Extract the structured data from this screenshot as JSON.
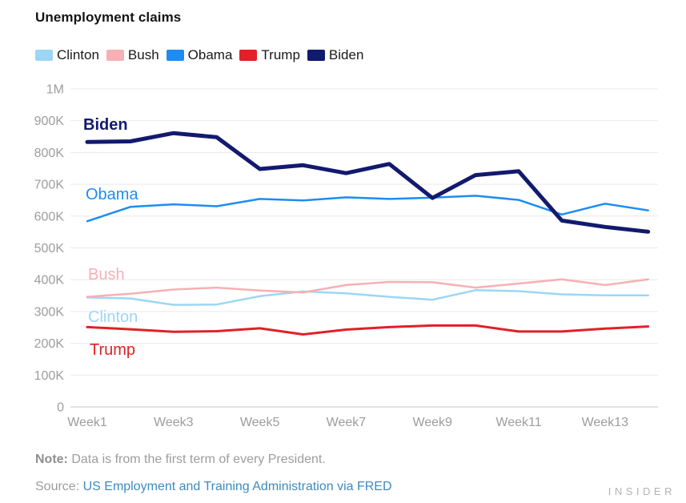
{
  "header": {
    "title": "Unemployment claims"
  },
  "chart_data": {
    "type": "line",
    "title": "Unemployment claims",
    "categories": [
      "Week1",
      "Week2",
      "Week3",
      "Week4",
      "Week5",
      "Week6",
      "Week7",
      "Week8",
      "Week9",
      "Week10",
      "Week11",
      "Week12",
      "Week13",
      "Week14"
    ],
    "x_tick_labels": [
      "Week1",
      "Week3",
      "Week5",
      "Week7",
      "Week9",
      "Week11",
      "Week13"
    ],
    "ylim": [
      0,
      1000000
    ],
    "y_ticks": [
      {
        "value": 0,
        "label": "0"
      },
      {
        "value": 100000,
        "label": "100K"
      },
      {
        "value": 200000,
        "label": "200K"
      },
      {
        "value": 300000,
        "label": "300K"
      },
      {
        "value": 400000,
        "label": "400K"
      },
      {
        "value": 500000,
        "label": "500K"
      },
      {
        "value": 600000,
        "label": "600K"
      },
      {
        "value": 700000,
        "label": "700K"
      },
      {
        "value": 800000,
        "label": "800K"
      },
      {
        "value": 900000,
        "label": "900K"
      },
      {
        "value": 1000000,
        "label": "1M"
      }
    ],
    "grid": true,
    "legend_position": "top",
    "series": [
      {
        "name": "Clinton",
        "color": "#9DD6F4",
        "values": [
          344000,
          341000,
          321000,
          322000,
          348000,
          363000,
          357000,
          346000,
          337000,
          367000,
          364000,
          354000,
          351000,
          351000
        ]
      },
      {
        "name": "Bush",
        "color": "#F7B0B3",
        "values": [
          346000,
          356000,
          369000,
          375000,
          366000,
          360000,
          383000,
          393000,
          392000,
          375000,
          388000,
          401000,
          383000,
          401000
        ]
      },
      {
        "name": "Obama",
        "color": "#1E8CF2",
        "values": [
          584000,
          629000,
          637000,
          631000,
          654000,
          649000,
          659000,
          654000,
          658000,
          664000,
          651000,
          605000,
          639000,
          618000
        ]
      },
      {
        "name": "Trump",
        "color": "#E02127",
        "values": [
          251000,
          244000,
          236000,
          238000,
          247000,
          228000,
          243000,
          251000,
          256000,
          256000,
          237000,
          237000,
          246000,
          253000
        ]
      },
      {
        "name": "Biden",
        "color": "#121A6E",
        "emphasis": true,
        "values": [
          833000,
          835000,
          861000,
          848000,
          748000,
          760000,
          735000,
          764000,
          657000,
          729000,
          741000,
          586000,
          566000,
          551000
        ]
      }
    ]
  },
  "footer": {
    "note_label": "Note:",
    "note_text": " Data is from the first term of every President.",
    "source_label": "Source: ",
    "source_link": "US Employment and Training Administration via FRED",
    "brand": "INSIDER"
  }
}
